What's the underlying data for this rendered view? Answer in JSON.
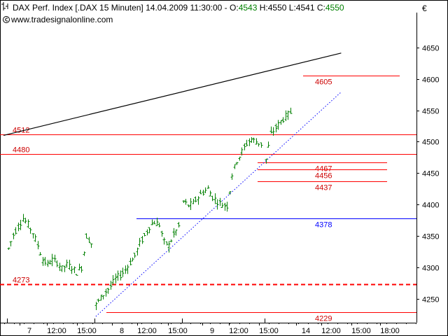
{
  "header": {
    "symbol_icon": "candlestick-icon",
    "instrument": "DAX Perf. Index [.DAX  15 Minuten]",
    "timestamp": "14.04.2009 11:30:00",
    "ohlc_prefix": "-",
    "open_label": "O:",
    "open": "4543",
    "high_label": "H:",
    "high": "4550",
    "low_label": "L:",
    "low": "4541",
    "close_label": "C:",
    "close": "4550"
  },
  "watermark": {
    "icon": "copyright-icon",
    "text": "www.tradesignalonline.com"
  },
  "currency": "€",
  "colors": {
    "background": "#ffffff",
    "bar": "#008000",
    "level_line": "#ff0000",
    "level_label": "#cc0000",
    "support_line": "#0000ff",
    "trend_line": "#000000",
    "open_value": "#008000",
    "close_value": "#008000"
  },
  "chart_data": {
    "type": "ohlc",
    "y_axis": {
      "side": "right",
      "ticks": [
        "4650",
        "4600",
        "4550",
        "4500",
        "4450",
        "4400",
        "4350",
        "4300",
        "4250"
      ],
      "range": [
        4217,
        4675
      ]
    },
    "x_axis": {
      "ticks": [
        "7",
        "12:00",
        "15:00",
        "8",
        "12:00",
        "15:00",
        "9",
        "12:00",
        "15:00",
        "14",
        "12:00",
        "15:00",
        "18:00"
      ]
    },
    "price_segments": [
      {
        "session": "7",
        "points": [
          [
            0,
            4330
          ],
          [
            2,
            4352
          ],
          [
            4,
            4365
          ],
          [
            6,
            4378
          ],
          [
            8,
            4368
          ],
          [
            10,
            4355
          ],
          [
            12,
            4335
          ],
          [
            14,
            4312
          ],
          [
            16,
            4305
          ],
          [
            18,
            4312
          ],
          [
            20,
            4308
          ],
          [
            22,
            4298
          ],
          [
            24,
            4304
          ],
          [
            26,
            4300
          ],
          [
            28,
            4292
          ],
          [
            30,
            4300
          ],
          [
            32,
            4350
          ],
          [
            34,
            4338
          ],
          [
            35,
            4330
          ]
        ]
      },
      {
        "session": "8",
        "points": [
          [
            36,
            4240
          ],
          [
            38,
            4252
          ],
          [
            40,
            4262
          ],
          [
            42,
            4270
          ],
          [
            44,
            4282
          ],
          [
            46,
            4288
          ],
          [
            48,
            4296
          ],
          [
            50,
            4308
          ],
          [
            52,
            4318
          ],
          [
            54,
            4338
          ],
          [
            56,
            4350
          ],
          [
            58,
            4365
          ],
          [
            60,
            4372
          ],
          [
            62,
            4368
          ],
          [
            64,
            4340
          ],
          [
            66,
            4335
          ],
          [
            68,
            4352
          ],
          [
            70,
            4365
          ],
          [
            71,
            4360
          ]
        ]
      },
      {
        "session": "9",
        "points": [
          [
            72,
            4405
          ],
          [
            74,
            4398
          ],
          [
            76,
            4402
          ],
          [
            78,
            4412
          ],
          [
            80,
            4420
          ],
          [
            82,
            4425
          ],
          [
            84,
            4412
          ],
          [
            86,
            4405
          ],
          [
            88,
            4400
          ],
          [
            90,
            4398
          ],
          [
            92,
            4448
          ],
          [
            94,
            4470
          ],
          [
            96,
            4484
          ],
          [
            98,
            4497
          ],
          [
            100,
            4504
          ],
          [
            102,
            4500
          ],
          [
            104,
            4496
          ],
          [
            105,
            4492
          ]
        ]
      },
      {
        "session": "14",
        "points": [
          [
            106,
            4472
          ],
          [
            108,
            4512
          ],
          [
            110,
            4522
          ],
          [
            112,
            4532
          ],
          [
            114,
            4540
          ],
          [
            116,
            4546
          ],
          [
            117,
            4550
          ]
        ]
      }
    ],
    "session_separators": [
      "7",
      "8",
      "9",
      "14"
    ],
    "horizontal_levels": [
      {
        "value": 4605,
        "label": "4605",
        "color": "red",
        "span": "right"
      },
      {
        "value": 4512,
        "label": "4512",
        "color": "red",
        "span": "full"
      },
      {
        "value": 4480,
        "label": "4480",
        "color": "red",
        "span": "full"
      },
      {
        "value": 4467,
        "label": "4467",
        "color": "red",
        "span": "partial"
      },
      {
        "value": 4456,
        "label": "4456",
        "color": "red",
        "span": "partial"
      },
      {
        "value": 4437,
        "label": "4437",
        "color": "red",
        "span": "partial"
      },
      {
        "value": 4378,
        "label": "4378",
        "color": "blue",
        "span": "partial"
      },
      {
        "value": 4273,
        "label": "4273",
        "color": "red",
        "span": "full",
        "style": "dashed"
      },
      {
        "value": 4229,
        "label": "4229",
        "color": "red",
        "span": "partial"
      }
    ],
    "trend_lines": [
      {
        "from": [
          -2,
          4510
        ],
        "to": [
          137,
          4641
        ],
        "style": "solid",
        "color": "black"
      },
      {
        "from": [
          36,
          4222
        ],
        "to": [
          137,
          4579
        ],
        "style": "dotted",
        "color": "blue"
      }
    ]
  }
}
